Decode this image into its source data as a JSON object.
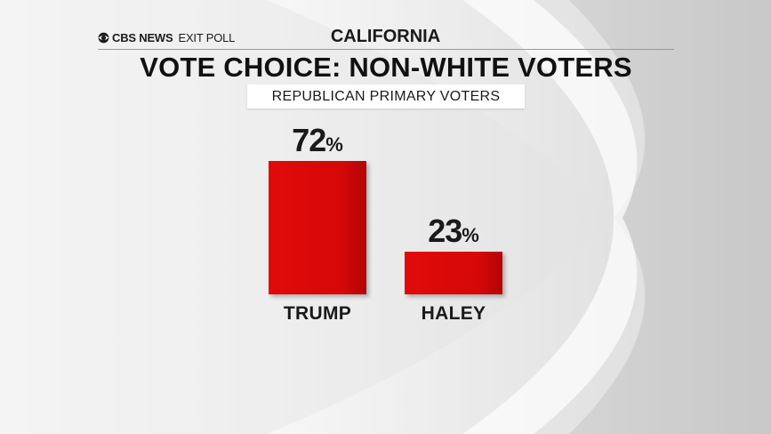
{
  "header": {
    "brand_bold": "CBS NEWS",
    "brand_light": "EXIT POLL",
    "state": "CALIFORNIA",
    "title": "VOTE CHOICE: NON-WHITE VOTERS",
    "subtitle": "REPUBLICAN PRIMARY VOTERS"
  },
  "colors": {
    "bar": "#d60808",
    "text": "#1a1a1a",
    "background": "#e6e6e6"
  },
  "chart_data": {
    "type": "bar",
    "title": "VOTE CHOICE: NON-WHITE VOTERS",
    "subtitle": "REPUBLICAN PRIMARY VOTERS",
    "categories": [
      "TRUMP",
      "HALEY"
    ],
    "values": [
      72,
      23
    ],
    "value_suffix": "%",
    "ylim": [
      0,
      100
    ],
    "grid": false,
    "legend": "none"
  }
}
